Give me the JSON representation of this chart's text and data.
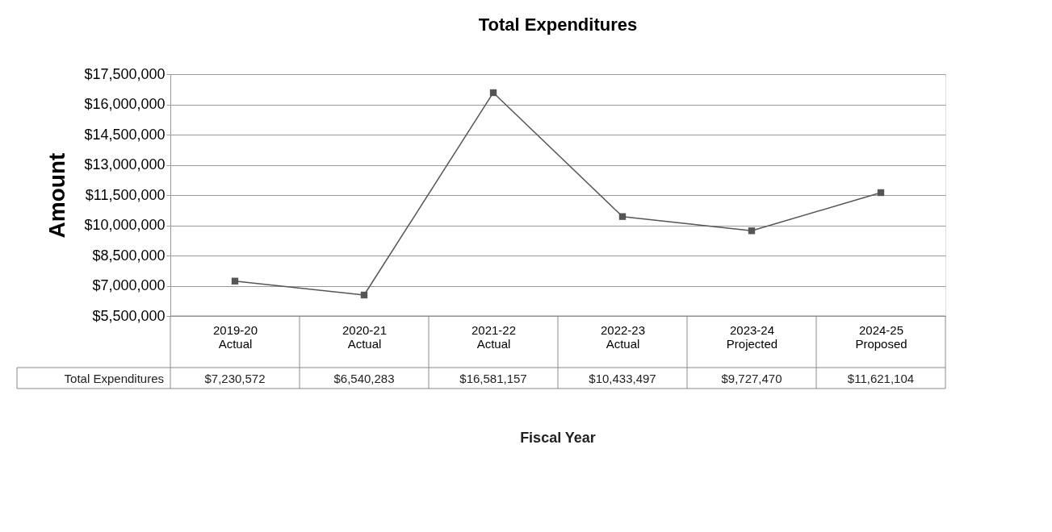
{
  "chart_data": {
    "type": "line",
    "title": "Total Expenditures",
    "ylabel": "Amount",
    "annotations": [
      "Fiscal Year"
    ],
    "categories": [
      "2019-20 Actual",
      "2020-21 Actual",
      "2021-22 Actual",
      "2022-23 Actual",
      "2023-24 Projected",
      "2024-25 Proposed"
    ],
    "series": [
      {
        "name": "Total Expenditures",
        "color": "#555555",
        "values": [
          7230572,
          6540283,
          16581157,
          10433497,
          9727470,
          11621104
        ],
        "value_labels": [
          "$7,230,572",
          "$6,540,283",
          "$16,581,157",
          "$10,433,497",
          "$9,727,470",
          "$11,621,104"
        ]
      }
    ],
    "ylim": [
      5500000,
      17500000
    ],
    "yticks": [
      {
        "value": 5500000,
        "label": "$5,500,000"
      },
      {
        "value": 7000000,
        "label": "$7,000,000"
      },
      {
        "value": 8500000,
        "label": "$8,500,000"
      },
      {
        "value": 10000000,
        "label": "$10,000,000"
      },
      {
        "value": 11500000,
        "label": "$11,500,000"
      },
      {
        "value": 13000000,
        "label": "$13,000,000"
      },
      {
        "value": 14500000,
        "label": "$14,500,000"
      },
      {
        "value": 16000000,
        "label": "$16,000,000"
      },
      {
        "value": 17500000,
        "label": "$17,500,000"
      }
    ],
    "grid": "y",
    "marker": "square",
    "line_style": "solid"
  }
}
